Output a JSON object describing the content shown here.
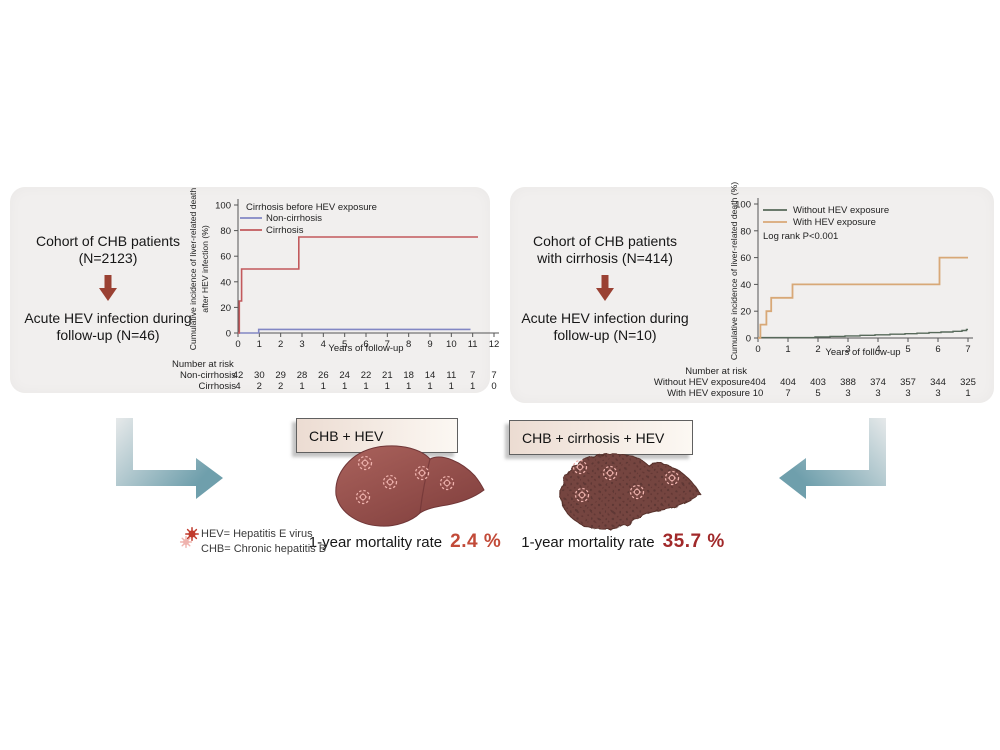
{
  "panels": {
    "left": {
      "cohort_line1": "Cohort of CHB patients",
      "cohort_line2": "(N=2123)",
      "outcome_line1": "Acute HEV infection during",
      "outcome_line2": "follow-up (N=46)"
    },
    "right": {
      "cohort_line1": "Cohort of CHB patients",
      "cohort_line2": "with cirrhosis (N=414)",
      "outcome_line1": "Acute HEV infection during",
      "outcome_line2": "follow-up (N=10)"
    }
  },
  "chart_data": [
    {
      "type": "line",
      "subtype": "cumulative-incidence-step",
      "xlabel": "Years of follow-up",
      "ylabel_lines": [
        "Cumulative incidence of liver-related death",
        "after HEV infection (%)"
      ],
      "xlim": [
        0,
        12
      ],
      "ylim": [
        0,
        100
      ],
      "xticks": [
        0,
        1,
        2,
        3,
        4,
        5,
        6,
        7,
        8,
        9,
        10,
        11,
        12
      ],
      "yticks": [
        0,
        20,
        40,
        60,
        80,
        100
      ],
      "grid": false,
      "legend_position": "top-left-inside",
      "legend_title": "Cirrhosis before HEV exposure",
      "series": [
        {
          "name": "Non-cirrhosis",
          "color": "#8287c4",
          "width": 1.6,
          "points": [
            [
              0,
              0
            ],
            [
              0.97,
              0
            ],
            [
              0.97,
              2.8
            ],
            [
              10.9,
              2.8
            ]
          ]
        },
        {
          "name": "Cirrhosis",
          "color": "#c2595c",
          "width": 1.6,
          "points": [
            [
              0,
              0
            ],
            [
              0.06,
              0
            ],
            [
              0.06,
              25
            ],
            [
              0.17,
              25
            ],
            [
              0.17,
              50
            ],
            [
              2.85,
              50
            ],
            [
              2.85,
              75
            ],
            [
              11.25,
              75
            ]
          ]
        }
      ],
      "number_at_risk": {
        "title": "Number at risk",
        "rows": [
          {
            "label": "Non-cirrhosis",
            "values": [
              42,
              30,
              29,
              28,
              26,
              24,
              22,
              21,
              18,
              14,
              11,
              7,
              7
            ]
          },
          {
            "label": "Cirrhosis",
            "values": [
              4,
              2,
              2,
              1,
              1,
              1,
              1,
              1,
              1,
              1,
              1,
              1,
              0
            ]
          }
        ]
      }
    },
    {
      "type": "line",
      "subtype": "cumulative-incidence-step",
      "xlabel": "Years of follow-up",
      "ylabel_lines": [
        "Cumulative incidence of liver-related death (%)"
      ],
      "xlim": [
        0,
        7
      ],
      "ylim": [
        0,
        100
      ],
      "xticks": [
        0,
        1,
        2,
        3,
        4,
        5,
        6,
        7
      ],
      "yticks": [
        0,
        20,
        40,
        60,
        80,
        100
      ],
      "grid": false,
      "legend_position": "top-left-inside",
      "legend_title": "",
      "annotation": "Log rank P<0.001",
      "series": [
        {
          "name": "Without HEV exposure",
          "color": "#57695a",
          "width": 1.4,
          "points": [
            [
              0,
              0.3
            ],
            [
              1.9,
              0.3
            ],
            [
              1.9,
              0.8
            ],
            [
              2.4,
              0.8
            ],
            [
              2.4,
              1.2
            ],
            [
              2.9,
              1.2
            ],
            [
              2.9,
              1.6
            ],
            [
              3.4,
              1.6
            ],
            [
              3.4,
              2.0
            ],
            [
              3.9,
              2.0
            ],
            [
              3.9,
              2.4
            ],
            [
              4.4,
              2.4
            ],
            [
              4.4,
              2.8
            ],
            [
              4.9,
              2.8
            ],
            [
              4.9,
              3.2
            ],
            [
              5.3,
              3.2
            ],
            [
              5.3,
              3.6
            ],
            [
              5.7,
              3.6
            ],
            [
              5.7,
              4.0
            ],
            [
              6.1,
              4.0
            ],
            [
              6.1,
              4.5
            ],
            [
              6.5,
              4.5
            ],
            [
              6.5,
              5.0
            ],
            [
              6.8,
              5.0
            ],
            [
              6.8,
              5.6
            ],
            [
              6.95,
              5.6
            ],
            [
              6.95,
              6.4
            ],
            [
              7,
              6.4
            ]
          ]
        },
        {
          "name": "With HEV exposure",
          "color": "#d8a877",
          "width": 1.8,
          "points": [
            [
              0,
              0
            ],
            [
              0.08,
              0
            ],
            [
              0.08,
              10
            ],
            [
              0.28,
              10
            ],
            [
              0.28,
              20
            ],
            [
              0.44,
              20
            ],
            [
              0.44,
              30
            ],
            [
              1.15,
              30
            ],
            [
              1.15,
              40
            ],
            [
              6.05,
              40
            ],
            [
              6.05,
              60
            ],
            [
              7,
              60
            ]
          ]
        }
      ],
      "number_at_risk": {
        "title": "Number at risk",
        "rows": [
          {
            "label": "Without HEV exposure",
            "values": [
              404,
              404,
              403,
              388,
              374,
              357,
              344,
              325
            ]
          },
          {
            "label": "With HEV exposure",
            "values": [
              10,
              7,
              5,
              3,
              3,
              3,
              3,
              1
            ]
          }
        ]
      }
    }
  ],
  "bottom": {
    "abbrev": {
      "hev": "HEV= Hepatitis E virus",
      "chb": "CHB= Chronic hepatitis B"
    },
    "left_outcome": {
      "box_label": "CHB + HEV",
      "mortality_label": "1-year mortality rate",
      "mortality_value": "2.4 %"
    },
    "right_outcome": {
      "box_label": "CHB + cirrhosis + HEV",
      "mortality_label": "1-year mortality rate",
      "mortality_value": "35.7 %"
    }
  },
  "colors": {
    "panel_bg": "#f1efee",
    "cohort_arrow": "#9a4133",
    "flow_arrow_light": "#e6e9ea",
    "flow_arrow_teal": "#6f9fac",
    "box_border": "#606060",
    "box_bg_left": "#ecdcd2",
    "box_bg_right": "#fcf8f3",
    "mortality_value_left": "#c24a38",
    "mortality_value_right": "#a1292a",
    "liver_smooth_light": "#aa625c",
    "liver_smooth_dark": "#82403e",
    "liver_cirrhotic": "#74443f",
    "liver_cirrhotic_dot": "#4e2d2b",
    "virus_ring": "#efb3ae",
    "virus_red": "#c03a2c"
  }
}
